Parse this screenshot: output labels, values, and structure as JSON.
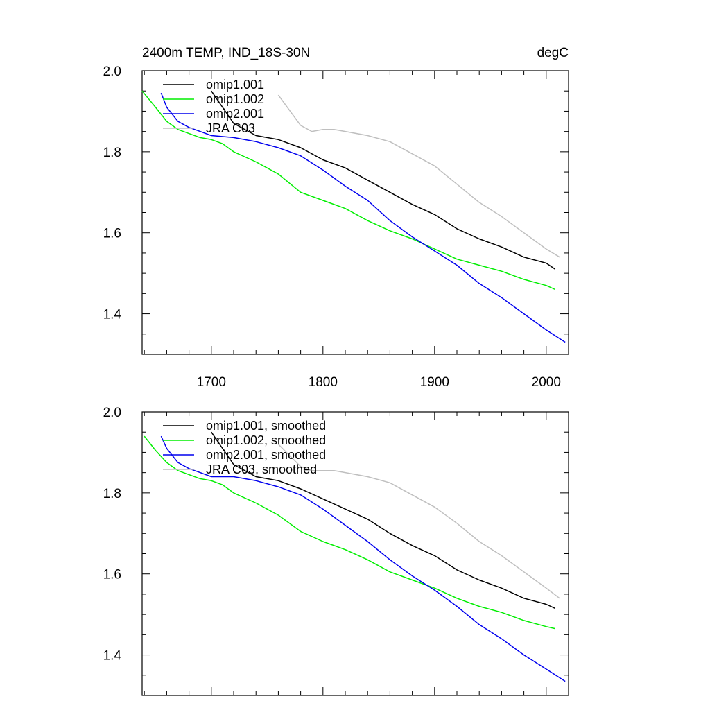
{
  "figure": {
    "title_left": "2400m TEMP, IND_18S-30N",
    "title_right": "degC"
  },
  "colors": {
    "omip1_001": "#000000",
    "omip1_002": "#00ee00",
    "omip2_001": "#0000ee",
    "jra_c03": "#bfbfbf"
  },
  "chart_data": [
    {
      "type": "line",
      "title": "2400m TEMP, IND_18S-30N",
      "units": "degC",
      "xlim": [
        1638,
        2020
      ],
      "ylim": [
        1.3,
        2.0
      ],
      "xticks": [
        1700,
        1800,
        1900,
        2000
      ],
      "xtick_labels": [
        "1700",
        "1800",
        "1900",
        "2000"
      ],
      "yticks": [
        1.4,
        1.6,
        1.8,
        2.0
      ],
      "ytick_labels": [
        "1.4",
        "1.6",
        "1.8",
        "2.0"
      ],
      "legend": "top-left",
      "show_xtick_labels": true,
      "series": [
        {
          "name": "omip1.001",
          "key": "omip1_001",
          "x": [
            1700,
            1720,
            1740,
            1760,
            1780,
            1800,
            1820,
            1840,
            1860,
            1880,
            1900,
            1920,
            1940,
            1960,
            1980,
            2000,
            2008
          ],
          "y": [
            1.95,
            1.87,
            1.84,
            1.83,
            1.81,
            1.78,
            1.76,
            1.73,
            1.7,
            1.67,
            1.645,
            1.61,
            1.585,
            1.565,
            1.54,
            1.525,
            1.51
          ]
        },
        {
          "name": "omip1.002",
          "key": "omip1_002",
          "x": [
            1638,
            1650,
            1660,
            1670,
            1680,
            1690,
            1700,
            1710,
            1720,
            1740,
            1760,
            1780,
            1800,
            1820,
            1840,
            1860,
            1880,
            1900,
            1920,
            1940,
            1960,
            1980,
            2000,
            2008
          ],
          "y": [
            1.95,
            1.91,
            1.875,
            1.855,
            1.845,
            1.835,
            1.83,
            1.82,
            1.8,
            1.775,
            1.745,
            1.7,
            1.68,
            1.66,
            1.63,
            1.605,
            1.585,
            1.56,
            1.535,
            1.52,
            1.505,
            1.485,
            1.47,
            1.46
          ]
        },
        {
          "name": "omip2.001",
          "key": "omip2_001",
          "x": [
            1655,
            1660,
            1670,
            1680,
            1690,
            1700,
            1720,
            1740,
            1760,
            1780,
            1800,
            1820,
            1840,
            1860,
            1880,
            1900,
            1920,
            1940,
            1960,
            1980,
            2000,
            2017
          ],
          "y": [
            1.945,
            1.91,
            1.875,
            1.86,
            1.85,
            1.84,
            1.835,
            1.825,
            1.81,
            1.79,
            1.755,
            1.715,
            1.68,
            1.63,
            1.59,
            1.555,
            1.52,
            1.475,
            1.44,
            1.4,
            1.36,
            1.33
          ]
        },
        {
          "name": "JRA C03",
          "key": "jra_c03",
          "x": [
            1760,
            1780,
            1790,
            1800,
            1810,
            1820,
            1840,
            1860,
            1880,
            1900,
            1920,
            1940,
            1960,
            1980,
            2000,
            2012
          ],
          "y": [
            1.94,
            1.865,
            1.85,
            1.855,
            1.855,
            1.85,
            1.84,
            1.825,
            1.795,
            1.765,
            1.72,
            1.675,
            1.64,
            1.6,
            1.56,
            1.54
          ]
        }
      ]
    },
    {
      "type": "line",
      "title": "",
      "xlim": [
        1638,
        2020
      ],
      "ylim": [
        1.3,
        2.0
      ],
      "xticks": [
        1700,
        1800,
        1900,
        2000
      ],
      "xtick_labels": [],
      "yticks": [
        1.4,
        1.6,
        1.8,
        2.0
      ],
      "ytick_labels": [
        "1.4",
        "1.6",
        "1.8",
        "2.0"
      ],
      "legend": "top-left",
      "show_xtick_labels": false,
      "series": [
        {
          "name": "omip1.001, smoothed",
          "key": "omip1_001",
          "x": [
            1700,
            1720,
            1740,
            1760,
            1780,
            1800,
            1820,
            1840,
            1860,
            1880,
            1900,
            1920,
            1940,
            1960,
            1980,
            2000,
            2008
          ],
          "y": [
            1.95,
            1.87,
            1.84,
            1.83,
            1.81,
            1.785,
            1.76,
            1.735,
            1.7,
            1.67,
            1.645,
            1.61,
            1.585,
            1.565,
            1.54,
            1.525,
            1.515
          ]
        },
        {
          "name": "omip1.002, smoothed",
          "key": "omip1_002",
          "x": [
            1640,
            1650,
            1660,
            1670,
            1680,
            1690,
            1700,
            1710,
            1720,
            1740,
            1760,
            1780,
            1800,
            1820,
            1840,
            1860,
            1880,
            1900,
            1920,
            1940,
            1960,
            1980,
            2000,
            2008
          ],
          "y": [
            1.94,
            1.905,
            1.875,
            1.855,
            1.845,
            1.835,
            1.83,
            1.82,
            1.8,
            1.775,
            1.745,
            1.705,
            1.68,
            1.66,
            1.635,
            1.605,
            1.585,
            1.565,
            1.54,
            1.52,
            1.505,
            1.485,
            1.47,
            1.465
          ]
        },
        {
          "name": "omip2.001, smoothed",
          "key": "omip2_001",
          "x": [
            1655,
            1660,
            1670,
            1680,
            1690,
            1700,
            1720,
            1740,
            1760,
            1780,
            1800,
            1820,
            1840,
            1860,
            1880,
            1900,
            1920,
            1940,
            1960,
            1980,
            2000,
            2017
          ],
          "y": [
            1.94,
            1.91,
            1.875,
            1.86,
            1.85,
            1.84,
            1.84,
            1.83,
            1.815,
            1.795,
            1.76,
            1.72,
            1.68,
            1.635,
            1.595,
            1.56,
            1.52,
            1.475,
            1.44,
            1.4,
            1.365,
            1.335
          ]
        },
        {
          "name": "JRA C03, smoothed",
          "key": "jra_c03",
          "x": [
            1760,
            1780,
            1790,
            1800,
            1810,
            1820,
            1840,
            1860,
            1880,
            1900,
            1920,
            1940,
            1960,
            1980,
            2000,
            2012
          ],
          "y": [
            1.92,
            1.865,
            1.855,
            1.855,
            1.855,
            1.85,
            1.84,
            1.825,
            1.795,
            1.765,
            1.725,
            1.68,
            1.645,
            1.605,
            1.565,
            1.54
          ]
        }
      ]
    }
  ]
}
